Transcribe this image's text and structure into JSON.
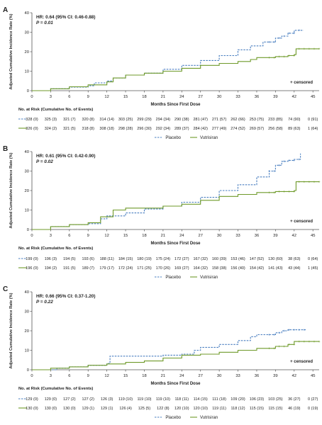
{
  "colors": {
    "placebo": "#4a7fc0",
    "vutrisiran": "#6f9a2a",
    "axis": "#555555",
    "text": "#222222"
  },
  "chart_data": [
    {
      "type": "line",
      "panel_label": "A",
      "xlabel": "Months Since First Dose",
      "ylabel": "Adjusted Cumulative Incidence Rate (%)",
      "xlim": [
        0,
        46
      ],
      "ylim": [
        0,
        40
      ],
      "xticks": [
        0,
        3,
        6,
        9,
        12,
        15,
        18,
        21,
        24,
        27,
        30,
        33,
        36,
        39,
        42,
        45
      ],
      "yticks": [
        0,
        10,
        20,
        30,
        40
      ],
      "stats": [
        "HR: 0.64 (95% CI: 0.46-0.88)",
        "P = 0.01"
      ],
      "censored_note": "+ censored",
      "series": [
        {
          "name": "Placebo",
          "style": "dashed",
          "x": [
            0,
            3,
            6,
            9,
            10,
            12,
            13,
            15,
            18,
            21,
            24,
            27,
            30,
            33,
            35,
            37,
            39,
            40,
            41,
            42,
            43.5
          ],
          "y": [
            0,
            1,
            1.8,
            2.5,
            4,
            5,
            6.5,
            8,
            9,
            11,
            13,
            15.5,
            18,
            21,
            23,
            25,
            27,
            28,
            29.5,
            31,
            31
          ]
        },
        {
          "name": "Vutrisiran",
          "style": "solid",
          "x": [
            0,
            3,
            6,
            9,
            12,
            13,
            15,
            18,
            21,
            24,
            27,
            30,
            33,
            35,
            36,
            39,
            41,
            42,
            42.3,
            46
          ],
          "y": [
            0,
            1,
            2,
            3,
            4.5,
            6.5,
            8,
            9,
            10,
            11.5,
            13,
            14,
            15,
            16,
            17,
            17.5,
            18,
            18.5,
            21.5,
            21.5
          ]
        }
      ],
      "risk_table": {
        "header": "No. at Risk (Cumulative No. of Events)",
        "rows": [
          {
            "name": "Placebo",
            "values": [
              "328 (0)",
              "325 (3)",
              "321 (7)",
              "320 (8)",
              "314 (14)",
              "303 (25)",
              "299 (29)",
              "294 (34)",
              "290 (38)",
              "281 (47)",
              "271 (57)",
              "262 (66)",
              "253 (75)",
              "233 (85)",
              "74 (90)",
              "0 (91)"
            ]
          },
          {
            "name": "Vutrisiran",
            "values": [
              "326 (0)",
              "324 (2)",
              "321 (5)",
              "318 (8)",
              "308 (18)",
              "298 (28)",
              "296 (30)",
              "292 (34)",
              "289 (37)",
              "284 (42)",
              "277 (49)",
              "274 (52)",
              "269 (57)",
              "256 (58)",
              "89 (63)",
              "1 (64)"
            ]
          }
        ]
      },
      "legend": [
        "Placebo",
        "Vutrisiran"
      ]
    },
    {
      "type": "line",
      "panel_label": "B",
      "xlabel": "Months Since First Dose",
      "ylabel": "Adjusted Cumulative Incidence Rate (%)",
      "xlim": [
        0,
        46
      ],
      "ylim": [
        0,
        40
      ],
      "xticks": [
        0,
        3,
        6,
        9,
        12,
        15,
        18,
        21,
        24,
        27,
        30,
        33,
        36,
        39,
        42,
        45
      ],
      "yticks": [
        0,
        10,
        20,
        30,
        40
      ],
      "stats": [
        "HR: 0.61 (95% CI: 0.42-0.90)",
        "P = 0.02"
      ],
      "censored_note": "+ censored",
      "series": [
        {
          "name": "Placebo",
          "style": "dashed",
          "x": [
            0,
            3,
            6,
            9,
            11,
            12,
            15,
            18,
            21,
            24,
            27,
            30,
            33,
            36,
            38,
            39,
            40,
            41,
            42,
            43
          ],
          "y": [
            0,
            1.5,
            2.5,
            3,
            5.5,
            7,
            8.5,
            10.5,
            12,
            14,
            16.5,
            20,
            23,
            27,
            30,
            33,
            35,
            35.5,
            36,
            39
          ]
        },
        {
          "name": "Vutrisiran",
          "style": "solid",
          "x": [
            0,
            3,
            6,
            9,
            11,
            13,
            15,
            18,
            21,
            24,
            27,
            30,
            33,
            36,
            39,
            42,
            42.3,
            46
          ],
          "y": [
            0,
            1.5,
            2.5,
            3.5,
            6.5,
            10,
            11,
            11,
            12,
            13,
            15,
            17,
            18,
            19,
            19.5,
            20,
            24.5,
            24.5
          ]
        }
      ],
      "risk_table": {
        "header": "No. at Risk (Cumulative No. of Events)",
        "rows": [
          {
            "name": "Placebo",
            "values": [
              "199 (0)",
              "196 (3)",
              "194 (5)",
              "193 (6)",
              "188 (11)",
              "184 (15)",
              "180 (19)",
              "175 (24)",
              "172 (27)",
              "167 (32)",
              "160 (39)",
              "153 (46)",
              "147 (52)",
              "130 (60)",
              "38 (63)",
              "0 (64)"
            ]
          },
          {
            "name": "Vutrisiran",
            "values": [
              "196 (0)",
              "194 (2)",
              "191 (5)",
              "189 (7)",
              "179 (17)",
              "172 (24)",
              "171 (25)",
              "170 (26)",
              "169 (27)",
              "164 (32)",
              "158 (38)",
              "156 (40)",
              "154 (42)",
              "141 (43)",
              "43 (44)",
              "1 (45)"
            ]
          }
        ]
      },
      "legend": [
        "Placebo",
        "Vutrisiran"
      ]
    },
    {
      "type": "line",
      "panel_label": "C",
      "xlabel": "Months Since First Dose",
      "ylabel": "Adjusted Cumulative Incidence Rate (%)",
      "xlim": [
        0,
        46
      ],
      "ylim": [
        0,
        40
      ],
      "xticks": [
        0,
        3,
        6,
        9,
        12,
        15,
        18,
        21,
        24,
        27,
        30,
        33,
        36,
        39,
        42,
        45
      ],
      "yticks": [
        0,
        10,
        20,
        30,
        40
      ],
      "stats": [
        "HR: 0.66 (95% CI: 0.37-1.20)",
        "P = 0.22"
      ],
      "censored_note": "+ censored",
      "series": [
        {
          "name": "Placebo",
          "style": "dashed",
          "x": [
            0,
            4,
            6,
            9,
            12,
            12.5,
            15,
            18,
            21,
            24,
            26,
            27,
            30,
            33,
            35,
            36,
            39,
            40,
            41,
            44
          ],
          "y": [
            0,
            0.8,
            1.5,
            2.3,
            3.2,
            7,
            7,
            7,
            7.5,
            8,
            10,
            11.5,
            13,
            15,
            17,
            18,
            19,
            20,
            20.5,
            20.5
          ]
        },
        {
          "name": "Vutrisiran",
          "style": "solid",
          "x": [
            0,
            3,
            6,
            9,
            12,
            15,
            18,
            21,
            24,
            27,
            30,
            33,
            36,
            39,
            41,
            42,
            46
          ],
          "y": [
            0,
            0.8,
            1.5,
            2.3,
            3,
            3.8,
            4.5,
            6,
            7.5,
            8,
            9,
            10,
            11,
            12,
            13,
            14.5,
            14.5
          ]
        }
      ],
      "risk_table": {
        "header": "No. at Risk (Cumulative No. of Events)",
        "rows": [
          {
            "name": "Placebo",
            "values": [
              "129 (0)",
              "129 (0)",
              "127 (2)",
              "127 (2)",
              "126 (3)",
              "119 (10)",
              "119 (10)",
              "119 (10)",
              "118 (11)",
              "114 (15)",
              "111 (18)",
              "109 (20)",
              "106 (23)",
              "103 (25)",
              "36 (27)",
              "0 (27)"
            ]
          },
          {
            "name": "Vutrisiran",
            "values": [
              "130 (0)",
              "130 (0)",
              "130 (0)",
              "129 (1)",
              "129 (1)",
              "126 (4)",
              "125 (5)",
              "122 (8)",
              "120 (10)",
              "120 (10)",
              "119 (11)",
              "118 (12)",
              "115 (15)",
              "115 (15)",
              "46 (19)",
              "0 (19)"
            ]
          }
        ]
      },
      "legend": [
        "Placebo",
        "Vutrisiran"
      ]
    }
  ]
}
